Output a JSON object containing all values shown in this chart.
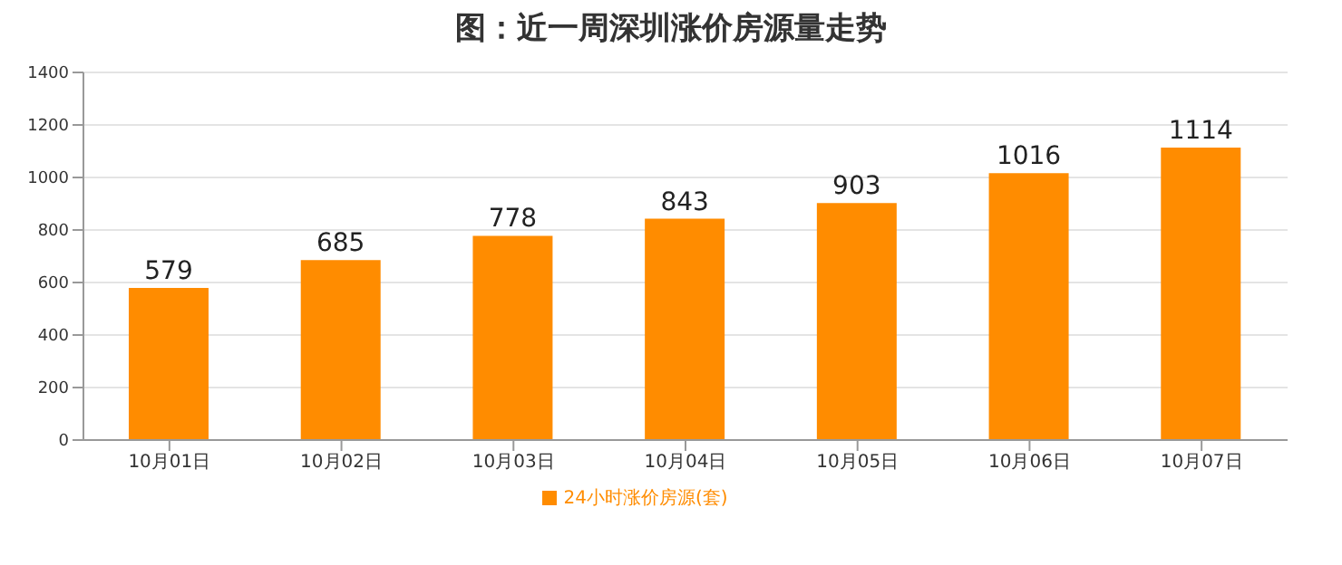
{
  "chart_data": {
    "type": "bar",
    "title": "图：近一周深圳涨价房源量走势",
    "categories": [
      "10月01日",
      "10月02日",
      "10月03日",
      "10月04日",
      "10月05日",
      "10月06日",
      "10月07日"
    ],
    "series": [
      {
        "name": "24小时涨价房源(套)",
        "color": "#ff8c00",
        "values": [
          579,
          685,
          778,
          843,
          903,
          1016,
          1114
        ]
      }
    ],
    "ylim": [
      0,
      1400
    ],
    "yticks": [
      0,
      200,
      400,
      600,
      800,
      1000,
      1200,
      1400
    ],
    "grid": "y",
    "legend": "bottom",
    "data_labels": true
  }
}
